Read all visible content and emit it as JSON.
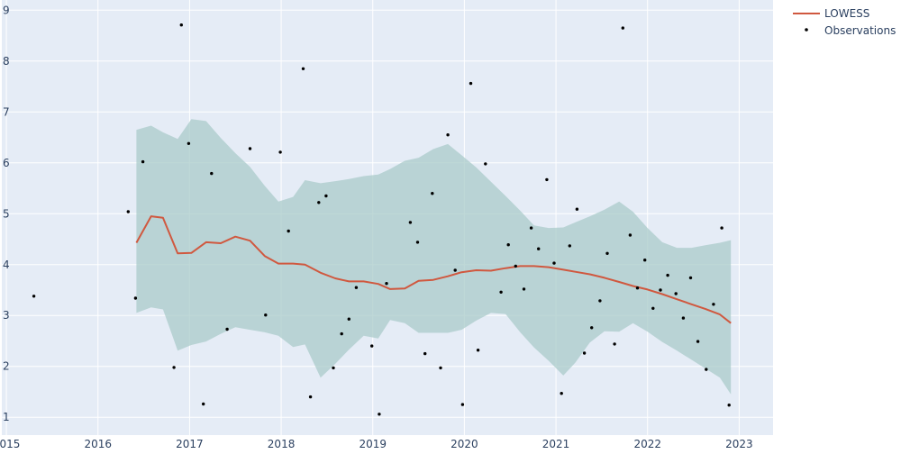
{
  "chart_data": {
    "type": "line",
    "x_axis": {
      "ticks": [
        "2015",
        "2016",
        "2017",
        "2018",
        "2019",
        "2020",
        "2021",
        "2022",
        "2023"
      ],
      "range": [
        2014.95,
        2023.37
      ]
    },
    "y_axis": {
      "ticks": [
        "1",
        "2",
        "3",
        "4",
        "5",
        "6",
        "7",
        "8",
        "9"
      ],
      "range": [
        0.65,
        9.2
      ]
    },
    "grid": true,
    "legend_position": "top-right",
    "legend": [
      "LOWESS",
      "Observations"
    ],
    "colors": {
      "plot_bg": "#e5ecf6",
      "grid": "#ffffff",
      "lowess": "#d0583f",
      "band": "#a9cbc9",
      "points": "#000000",
      "text": "#2a3f5f"
    },
    "series": [
      {
        "name": "LOWESS",
        "type": "line",
        "x": [
          2016.42,
          2016.58,
          2016.71,
          2016.87,
          2017.02,
          2017.18,
          2017.34,
          2017.5,
          2017.66,
          2017.82,
          2017.97,
          2018.13,
          2018.26,
          2018.43,
          2018.59,
          2018.74,
          2018.9,
          2019.06,
          2019.19,
          2019.35,
          2019.5,
          2019.66,
          2019.82,
          2019.97,
          2020.13,
          2020.29,
          2020.45,
          2020.61,
          2020.76,
          2020.92,
          2021.08,
          2021.21,
          2021.37,
          2021.53,
          2021.69,
          2021.84,
          2022.0,
          2022.16,
          2022.32,
          2022.48,
          2022.63,
          2022.79,
          2022.91
        ],
        "y": [
          4.43,
          4.95,
          4.92,
          4.22,
          4.23,
          4.44,
          4.42,
          4.55,
          4.47,
          4.17,
          4.02,
          4.02,
          4.0,
          3.84,
          3.73,
          3.67,
          3.67,
          3.62,
          3.52,
          3.53,
          3.68,
          3.7,
          3.77,
          3.85,
          3.89,
          3.88,
          3.93,
          3.97,
          3.97,
          3.95,
          3.9,
          3.86,
          3.81,
          3.74,
          3.66,
          3.58,
          3.51,
          3.42,
          3.32,
          3.22,
          3.13,
          3.02,
          2.85
        ]
      }
    ],
    "band": {
      "name": "LOWESS confidence band",
      "x": [
        2016.42,
        2016.58,
        2016.71,
        2016.87,
        2017.02,
        2017.18,
        2017.34,
        2017.5,
        2017.66,
        2017.82,
        2017.97,
        2018.13,
        2018.26,
        2018.43,
        2018.59,
        2018.74,
        2018.9,
        2019.06,
        2019.19,
        2019.35,
        2019.5,
        2019.66,
        2019.82,
        2019.97,
        2020.13,
        2020.29,
        2020.45,
        2020.61,
        2020.76,
        2020.92,
        2021.08,
        2021.21,
        2021.37,
        2021.53,
        2021.69,
        2021.84,
        2022.0,
        2022.16,
        2022.32,
        2022.48,
        2022.63,
        2022.79,
        2022.91
      ],
      "upper": [
        6.65,
        6.73,
        6.6,
        6.47,
        6.86,
        6.82,
        6.49,
        6.19,
        5.92,
        5.55,
        5.24,
        5.33,
        5.66,
        5.6,
        5.64,
        5.68,
        5.74,
        5.77,
        5.88,
        6.04,
        6.1,
        6.27,
        6.37,
        6.15,
        5.91,
        5.63,
        5.35,
        5.06,
        4.77,
        4.72,
        4.73,
        4.83,
        4.95,
        5.08,
        5.24,
        5.04,
        4.72,
        4.44,
        4.33,
        4.33,
        4.38,
        4.43,
        4.48
      ],
      "lower": [
        3.05,
        3.16,
        3.12,
        2.31,
        2.42,
        2.49,
        2.64,
        2.77,
        2.72,
        2.67,
        2.6,
        2.38,
        2.43,
        1.78,
        2.05,
        2.33,
        2.6,
        2.55,
        2.91,
        2.85,
        2.66,
        2.66,
        2.66,
        2.72,
        2.9,
        3.05,
        3.03,
        2.67,
        2.37,
        2.11,
        1.82,
        2.07,
        2.47,
        2.69,
        2.68,
        2.85,
        2.68,
        2.48,
        2.31,
        2.13,
        1.96,
        1.78,
        1.45
      ]
    },
    "observations": {
      "name": "Observations",
      "type": "scatter",
      "points": [
        [
          2015.3,
          3.38
        ],
        [
          2016.33,
          5.04
        ],
        [
          2016.41,
          3.34
        ],
        [
          2016.49,
          6.02
        ],
        [
          2016.83,
          1.98
        ],
        [
          2016.91,
          8.71
        ],
        [
          2016.99,
          6.38
        ],
        [
          2017.15,
          1.26
        ],
        [
          2017.24,
          5.79
        ],
        [
          2017.41,
          2.73
        ],
        [
          2017.66,
          6.28
        ],
        [
          2017.83,
          3.01
        ],
        [
          2017.99,
          6.21
        ],
        [
          2018.08,
          4.66
        ],
        [
          2018.24,
          7.85
        ],
        [
          2018.32,
          1.4
        ],
        [
          2018.41,
          5.22
        ],
        [
          2018.49,
          5.35
        ],
        [
          2018.57,
          1.97
        ],
        [
          2018.66,
          2.64
        ],
        [
          2018.74,
          2.93
        ],
        [
          2018.82,
          3.55
        ],
        [
          2018.99,
          2.4
        ],
        [
          2019.07,
          1.06
        ],
        [
          2019.15,
          3.63
        ],
        [
          2019.41,
          4.83
        ],
        [
          2019.49,
          4.44
        ],
        [
          2019.57,
          2.25
        ],
        [
          2019.65,
          5.4
        ],
        [
          2019.74,
          1.97
        ],
        [
          2019.82,
          6.55
        ],
        [
          2019.9,
          3.89
        ],
        [
          2019.98,
          1.25
        ],
        [
          2020.07,
          7.56
        ],
        [
          2020.15,
          2.32
        ],
        [
          2020.23,
          5.98
        ],
        [
          2020.4,
          3.46
        ],
        [
          2020.48,
          4.39
        ],
        [
          2020.56,
          3.97
        ],
        [
          2020.65,
          3.52
        ],
        [
          2020.73,
          4.72
        ],
        [
          2020.81,
          4.31
        ],
        [
          2020.9,
          5.67
        ],
        [
          2020.98,
          4.03
        ],
        [
          2021.06,
          1.47
        ],
        [
          2021.15,
          4.37
        ],
        [
          2021.23,
          5.09
        ],
        [
          2021.31,
          2.26
        ],
        [
          2021.39,
          2.76
        ],
        [
          2021.48,
          3.29
        ],
        [
          2021.56,
          4.22
        ],
        [
          2021.64,
          2.44
        ],
        [
          2021.73,
          8.65
        ],
        [
          2021.81,
          4.58
        ],
        [
          2021.89,
          3.54
        ],
        [
          2021.97,
          4.09
        ],
        [
          2022.06,
          3.14
        ],
        [
          2022.14,
          3.5
        ],
        [
          2022.22,
          3.79
        ],
        [
          2022.31,
          3.43
        ],
        [
          2022.39,
          2.95
        ],
        [
          2022.47,
          3.74
        ],
        [
          2022.55,
          2.49
        ],
        [
          2022.64,
          1.94
        ],
        [
          2022.72,
          3.22
        ],
        [
          2022.81,
          4.72
        ],
        [
          2022.89,
          1.24
        ]
      ]
    }
  }
}
